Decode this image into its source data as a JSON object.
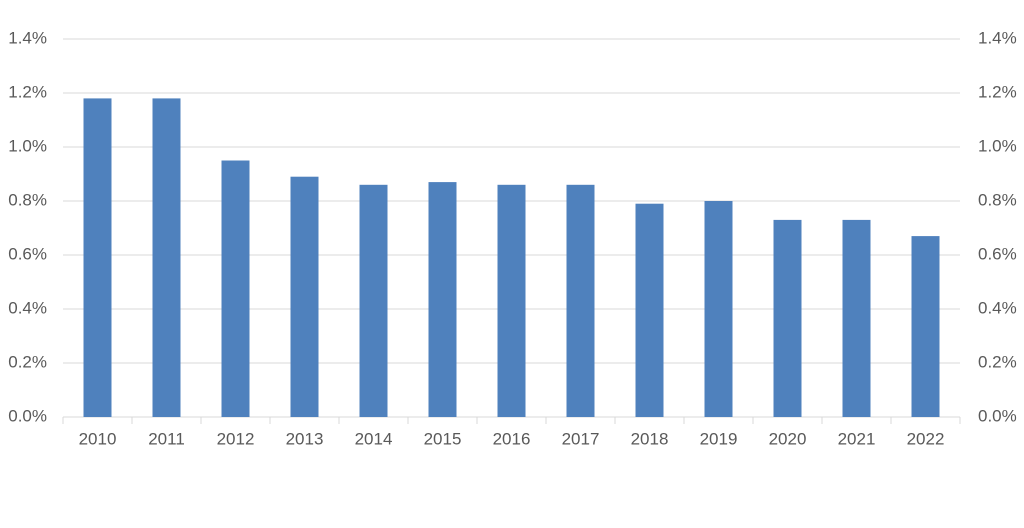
{
  "chart_data": {
    "type": "bar",
    "categories": [
      "2010",
      "2011",
      "2012",
      "2013",
      "2014",
      "2015",
      "2016",
      "2017",
      "2018",
      "2019",
      "2020",
      "2021",
      "2022"
    ],
    "values": [
      1.18,
      1.18,
      0.95,
      0.89,
      0.86,
      0.87,
      0.86,
      0.86,
      0.79,
      0.8,
      0.73,
      0.73,
      0.67
    ],
    "color": "#4f81bd",
    "ylim": [
      0,
      1.4
    ],
    "yticks": [
      {
        "value": 0,
        "label": "0.0%"
      },
      {
        "value": 0.2,
        "label": "0.2%"
      },
      {
        "value": 0.4,
        "label": "0.4%"
      },
      {
        "value": 0.6,
        "label": "0.6%"
      },
      {
        "value": 0.8,
        "label": "0.8%"
      },
      {
        "value": 1.0,
        "label": "1.0%"
      },
      {
        "value": 1.2,
        "label": "1.2%"
      },
      {
        "value": 1.4,
        "label": "1.4%"
      }
    ],
    "y2lim": [
      0,
      1.4
    ],
    "y2ticks": [
      {
        "value": 0,
        "label": "0.0%"
      },
      {
        "value": 0.2,
        "label": "0.2%"
      },
      {
        "value": 0.4,
        "label": "0.4%"
      },
      {
        "value": 0.6,
        "label": "0.6%"
      },
      {
        "value": 0.8,
        "label": "0.8%"
      },
      {
        "value": 1.0,
        "label": "1.0%"
      },
      {
        "value": 1.2,
        "label": "1.2%"
      },
      {
        "value": 1.4,
        "label": "1.4%"
      }
    ],
    "grid": true
  }
}
